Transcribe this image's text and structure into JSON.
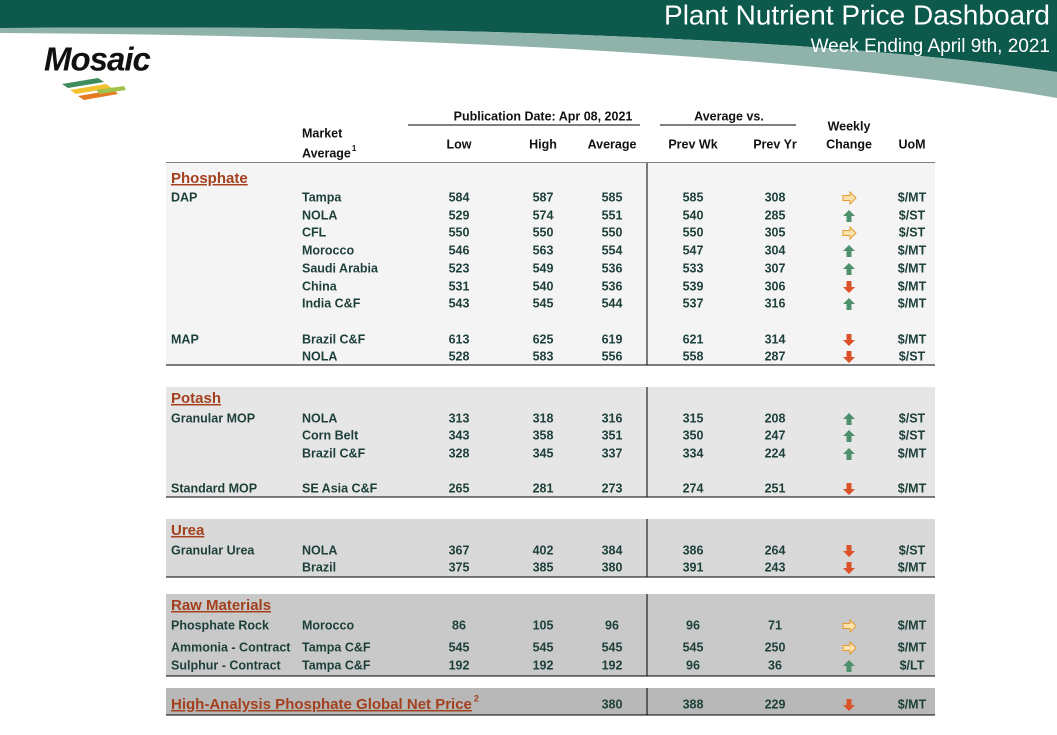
{
  "header": {
    "title": "Plant Nutrient Price Dashboard",
    "subtitle": "Week Ending April 9th, 2021",
    "logo": "Mosaic"
  },
  "table": {
    "publication_date": "Publication Date:  Apr 08, 2021",
    "average_vs": "Average  vs.",
    "columns": {
      "market": "Market",
      "market_2": "Average",
      "market_note": "1",
      "low": "Low",
      "high": "High",
      "average": "Average",
      "prev_wk": "Prev Wk",
      "prev_yr": "Prev Yr",
      "change": "Weekly",
      "change_2": "Change",
      "uom": "UoM"
    },
    "sections": [
      {
        "name": "Phosphate",
        "rows": [
          {
            "group": "DAP",
            "market": "Tampa",
            "low": 584,
            "high": 587,
            "average": 585,
            "prev_wk": 585,
            "prev_yr": 308,
            "change": "flat",
            "uom": "$/MT"
          },
          {
            "market": "NOLA",
            "low": 529,
            "high": 574,
            "average": 551,
            "prev_wk": 540,
            "prev_yr": 285,
            "change": "up",
            "uom": "$/ST"
          },
          {
            "market": "CFL",
            "low": 550,
            "high": 550,
            "average": 550,
            "prev_wk": 550,
            "prev_yr": 305,
            "change": "flat",
            "uom": "$/ST"
          },
          {
            "market": "Morocco",
            "low": 546,
            "high": 563,
            "average": 554,
            "prev_wk": 547,
            "prev_yr": 304,
            "change": "up",
            "uom": "$/MT"
          },
          {
            "market": "Saudi Arabia",
            "low": 523,
            "high": 549,
            "average": 536,
            "prev_wk": 533,
            "prev_yr": 307,
            "change": "up",
            "uom": "$/MT"
          },
          {
            "market": "China",
            "low": 531,
            "high": 540,
            "average": 536,
            "prev_wk": 539,
            "prev_yr": 306,
            "change": "down",
            "uom": "$/MT"
          },
          {
            "market": "India C&F",
            "low": 543,
            "high": 545,
            "average": 544,
            "prev_wk": 537,
            "prev_yr": 316,
            "change": "up",
            "uom": "$/MT"
          },
          {
            "group": "MAP",
            "market": "Brazil C&F",
            "low": 613,
            "high": 625,
            "average": 619,
            "prev_wk": 621,
            "prev_yr": 314,
            "change": "down",
            "uom": "$/MT"
          },
          {
            "market": "NOLA",
            "low": 528,
            "high": 583,
            "average": 556,
            "prev_wk": 558,
            "prev_yr": 287,
            "change": "down",
            "uom": "$/ST"
          }
        ]
      },
      {
        "name": "Potash",
        "rows": [
          {
            "group": "Granular MOP",
            "market": "NOLA",
            "low": 313,
            "high": 318,
            "average": 316,
            "prev_wk": 315,
            "prev_yr": 208,
            "change": "up",
            "uom": "$/ST"
          },
          {
            "market": "Corn Belt",
            "low": 343,
            "high": 358,
            "average": 351,
            "prev_wk": 350,
            "prev_yr": 247,
            "change": "up",
            "uom": "$/ST"
          },
          {
            "market": "Brazil C&F",
            "low": 328,
            "high": 345,
            "average": 337,
            "prev_wk": 334,
            "prev_yr": 224,
            "change": "up",
            "uom": "$/MT"
          },
          {
            "group": "Standard MOP",
            "market": "SE Asia C&F",
            "low": 265,
            "high": 281,
            "average": 273,
            "prev_wk": 274,
            "prev_yr": 251,
            "change": "down",
            "uom": "$/MT"
          }
        ]
      },
      {
        "name": "Urea",
        "rows": [
          {
            "group": "Granular Urea",
            "market": "NOLA",
            "low": 367,
            "high": 402,
            "average": 384,
            "prev_wk": 386,
            "prev_yr": 264,
            "change": "down",
            "uom": "$/ST"
          },
          {
            "market": "Brazil",
            "low": 375,
            "high": 385,
            "average": 380,
            "prev_wk": 391,
            "prev_yr": 243,
            "change": "down",
            "uom": "$/MT"
          }
        ]
      },
      {
        "name": "Raw Materials",
        "rows": [
          {
            "group": "Phosphate Rock",
            "market": "Morocco",
            "low": 86,
            "high": 105,
            "average": 96,
            "prev_wk": 96,
            "prev_yr": 71,
            "change": "flat",
            "uom": "$/MT"
          },
          {
            "group": "Ammonia - Contract",
            "market": "Tampa C&F",
            "low": 545,
            "high": 545,
            "average": 545,
            "prev_wk": 545,
            "prev_yr": 250,
            "change": "flat",
            "uom": "$/MT"
          },
          {
            "group": "Sulphur - Contract",
            "market": "Tampa C&F",
            "low": 192,
            "high": 192,
            "average": 192,
            "prev_wk": 96,
            "prev_yr": 36,
            "change": "up",
            "uom": "$/LT"
          }
        ]
      },
      {
        "name": "High-Analysis Phosphate Global Net Price",
        "note": "2",
        "rows": [
          {
            "average": 380,
            "prev_wk": 388,
            "prev_yr": 229,
            "change": "down",
            "uom": "$/MT"
          }
        ]
      }
    ]
  }
}
